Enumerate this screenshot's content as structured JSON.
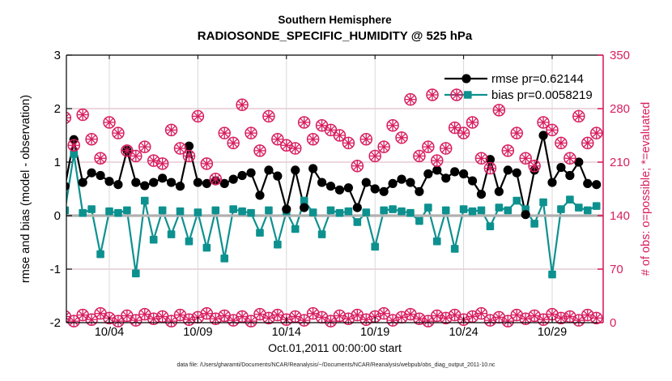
{
  "header": {
    "title": "Southern Hemisphere",
    "subtitle": "RADIOSONDE_SPECIFIC_HUMIDITY @ 525 hPa"
  },
  "footer": {
    "data_file": "data file: /Users/gharamti/Documents/NCAR/Reanalysis/~/Documents/NCAR/Reanalysis/webpub/obs_diag_output_2011-10.nc"
  },
  "chart_data": {
    "type": "line",
    "title": "Southern Hemisphere",
    "subtitle": "RADIOSONDE_SPECIFIC_HUMIDITY @ 525 hPa",
    "xlabel": "Oct.01,2011 00:00:00 start",
    "ylabel_left": "rmse and bias (model - observation)",
    "ylabel_right": "# of obs: o=possible; *=evaluated",
    "ylim_left": [
      -2,
      3
    ],
    "yticks_left": [
      3,
      2,
      1,
      0,
      -1,
      -2
    ],
    "ylim_right": [
      0,
      350
    ],
    "yticks_right": [
      350,
      280,
      210,
      140,
      70,
      0
    ],
    "grid": "on",
    "legend_position": "top-right-inside",
    "legend": [
      {
        "label": "rmse pr=0.62144",
        "color": "#000000",
        "marker": "filled-circle"
      },
      {
        "label": "bias pr=0.0058219",
        "color": "#0d918f",
        "marker": "filled-square-with-obs-star"
      }
    ],
    "colors": {
      "rmse": "#000000",
      "bias": "#0d918f",
      "obs_counts": "#d81e5f",
      "zero_line": "#b0b0b0",
      "grid_gray": "#d9d9d9",
      "axis_right": "#d81e5f"
    },
    "x_ticks": [
      {
        "day": 3,
        "label": "10/04"
      },
      {
        "day": 8,
        "label": "10/09"
      },
      {
        "day": 13,
        "label": "10/14"
      },
      {
        "day": 18,
        "label": "10/19"
      },
      {
        "day": 23,
        "label": "10/24"
      },
      {
        "day": 28,
        "label": "10/29"
      }
    ],
    "x_days_since_start": [
      0.5,
      1,
      1.5,
      2,
      2.5,
      3,
      3.5,
      4,
      4.5,
      5,
      5.5,
      6,
      6.5,
      7,
      7.5,
      8,
      8.5,
      9,
      9.5,
      10,
      10.5,
      11,
      11.5,
      12,
      12.5,
      13,
      13.5,
      14,
      14.5,
      15,
      15.5,
      16,
      16.5,
      17,
      17.5,
      18,
      18.5,
      19,
      19.5,
      20,
      20.5,
      21,
      21.5,
      22,
      22.5,
      23,
      23.5,
      24,
      24.5,
      25,
      25.5,
      26,
      26.5,
      27,
      27.5,
      28,
      28.5,
      29,
      29.5,
      30,
      30.5
    ],
    "series": [
      {
        "name": "rmse",
        "axis": "left",
        "values": [
          0.55,
          1.42,
          0.62,
          0.8,
          0.75,
          0.64,
          0.58,
          1.22,
          0.62,
          0.56,
          0.62,
          0.7,
          0.62,
          0.55,
          1.3,
          0.62,
          0.6,
          0.65,
          0.6,
          0.68,
          0.75,
          0.8,
          0.38,
          0.85,
          0.74,
          0.12,
          0.85,
          0.15,
          0.88,
          0.62,
          0.55,
          0.48,
          0.52,
          0.15,
          0.62,
          0.5,
          0.45,
          0.6,
          0.68,
          0.62,
          0.45,
          0.78,
          0.85,
          0.7,
          0.82,
          0.78,
          0.65,
          0.4,
          1.05,
          0.45,
          0.85,
          0.8,
          0.02,
          0.85,
          1.5,
          0.62,
          0.9,
          0.75,
          1.0,
          0.6,
          0.58
        ]
      },
      {
        "name": "bias",
        "axis": "left",
        "values": [
          0.1,
          1.15,
          0.05,
          0.12,
          -0.72,
          0.08,
          0.05,
          0.1,
          -1.08,
          0.28,
          -0.45,
          0.1,
          -0.35,
          0.08,
          -0.48,
          0.06,
          -0.6,
          0.1,
          -0.8,
          0.12,
          0.08,
          0.05,
          -0.32,
          0.1,
          -0.54,
          0.08,
          -0.25,
          0.28,
          0.06,
          -0.35,
          0.1,
          0.05,
          0.08,
          -0.12,
          0.06,
          -0.58,
          0.1,
          0.12,
          0.08,
          0.05,
          -0.1,
          0.15,
          -0.48,
          0.1,
          -0.62,
          0.12,
          0.08,
          0.1,
          -0.2,
          0.15,
          0.1,
          0.28,
          0.12,
          -0.15,
          0.25,
          -1.1,
          0.12,
          0.3,
          0.15,
          0.1,
          0.18
        ]
      },
      {
        "name": "possible_obs",
        "axis": "right",
        "values": [
          268,
          232,
          272,
          240,
          215,
          262,
          248,
          225,
          218,
          230,
          212,
          208,
          252,
          228,
          218,
          270,
          208,
          188,
          248,
          235,
          285,
          248,
          225,
          270,
          240,
          232,
          228,
          262,
          240,
          258,
          252,
          245,
          235,
          205,
          240,
          218,
          230,
          258,
          242,
          292,
          218,
          230,
          212,
          228,
          255,
          248,
          262,
          215,
          202,
          278,
          225,
          248,
          215,
          205,
          262,
          252,
          235,
          215,
          270,
          235,
          248
        ]
      },
      {
        "name": "evaluated_obs",
        "axis": "right",
        "values": [
          8,
          2,
          10,
          4,
          12,
          6,
          2,
          9,
          3,
          11,
          5,
          8,
          2,
          10,
          4,
          7,
          12,
          5,
          9,
          3,
          8,
          2,
          11,
          6,
          10,
          4,
          8,
          3,
          12,
          7,
          2,
          9,
          5,
          10,
          4,
          8,
          12,
          3,
          7,
          11,
          5,
          2,
          9,
          6,
          10,
          4,
          8,
          12,
          3,
          7,
          2,
          10,
          5,
          9,
          4,
          11,
          6,
          8,
          3,
          10,
          6
        ]
      }
    ]
  }
}
